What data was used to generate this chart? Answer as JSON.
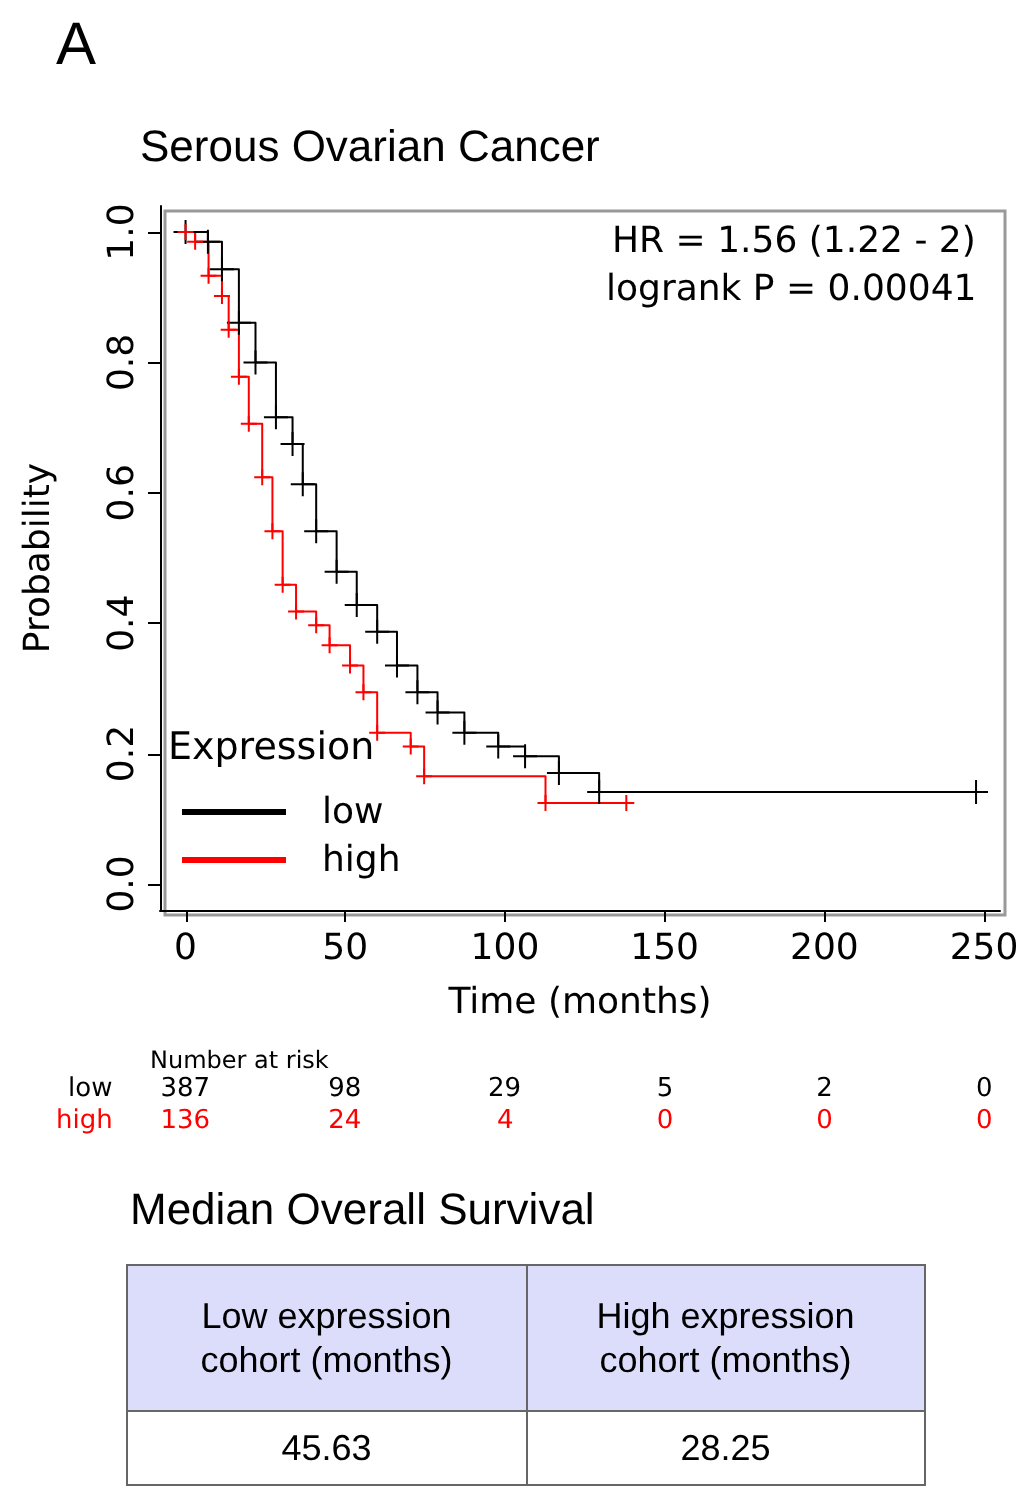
{
  "chart_data": {
    "type": "step",
    "title": "Serous Ovarian Cancer",
    "xlabel": "Time (months)",
    "ylabel": "Probability",
    "legend_title": "Expression",
    "legend": "bottom left",
    "marker": "cross",
    "grid": false,
    "xlim": [
      -8,
      255
    ],
    "xticks": [
      0,
      50,
      100,
      150,
      200,
      250
    ],
    "ylim": [
      -0.04,
      1.04
    ],
    "yticks": [
      {
        "value": 0,
        "label": "0.0"
      },
      {
        "value": 0.2,
        "label": "0.2"
      },
      {
        "value": 0.4,
        "label": "0.4"
      },
      {
        "value": 0.6,
        "label": "0.6"
      },
      {
        "value": 0.8,
        "label": "0.8"
      },
      {
        "value": 1,
        "label": "1.0"
      }
    ],
    "series": [
      {
        "name": "low",
        "color": "#000000",
        "x": [
          0,
          7,
          11.4,
          16.7,
          21.9,
          28.3,
          33.5,
          36.7,
          40.9,
          47.3,
          53.6,
          60,
          66.2,
          72.6,
          78.9,
          87.3,
          97.9,
          106.3,
          116.9,
          129.5,
          247.5
        ],
        "values": [
          1.0,
          0.985,
          0.943,
          0.861,
          0.8,
          0.716,
          0.675,
          0.613,
          0.541,
          0.479,
          0.428,
          0.387,
          0.335,
          0.294,
          0.263,
          0.232,
          0.211,
          0.196,
          0.17,
          0.141,
          0.141
        ]
      },
      {
        "name": "high",
        "color": "#ff0000",
        "x": [
          0,
          3,
          7.2,
          11.4,
          13.5,
          16.7,
          19.8,
          24,
          27.2,
          30.4,
          34.6,
          40.9,
          45.1,
          51.5,
          55.7,
          60,
          70.5,
          74.7,
          112.7,
          138
        ],
        "values": [
          1.0,
          0.985,
          0.933,
          0.902,
          0.85,
          0.778,
          0.706,
          0.624,
          0.541,
          0.459,
          0.418,
          0.397,
          0.366,
          0.335,
          0.294,
          0.232,
          0.211,
          0.165,
          0.124,
          0.124
        ]
      }
    ],
    "annotations": [
      "A",
      "HR = 1.56 (1.22 - 2)",
      "logrank P = 0.00041",
      "Number at risk",
      "387",
      "98",
      "29",
      "5",
      "2",
      "0",
      "136",
      "24",
      "4",
      "0",
      "0",
      "0",
      "Median Overall Survival",
      "Low expression cohort (months)",
      "High expression cohort (months)",
      "45.63",
      "28.25"
    ]
  }
}
